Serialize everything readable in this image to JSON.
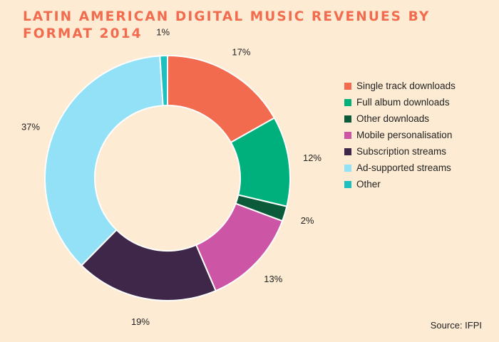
{
  "chart_data": {
    "type": "pie",
    "title": "Latin American digital music revenues by format 2014",
    "donut": true,
    "start_angle_deg": 0,
    "legend_position": "right",
    "slices": [
      {
        "name": "Single track downloads",
        "value": 17,
        "label": "17%",
        "color": "#f26b4e"
      },
      {
        "name": "Full album downloads",
        "value": 12,
        "label": "12%",
        "color": "#00b07c"
      },
      {
        "name": "Other downloads",
        "value": 2,
        "label": "2%",
        "color": "#0b5a3a"
      },
      {
        "name": "Mobile personalisation",
        "value": 13,
        "label": "13%",
        "color": "#cc56a5"
      },
      {
        "name": "Subscription streams",
        "value": 19,
        "label": "19%",
        "color": "#3e2748"
      },
      {
        "name": "Ad-supported streams",
        "value": 37,
        "label": "37%",
        "color": "#93e1f7"
      },
      {
        "name": "Other",
        "value": 1,
        "label": "1%",
        "color": "#1ebfbf"
      }
    ]
  },
  "source": "Source: IFPI"
}
